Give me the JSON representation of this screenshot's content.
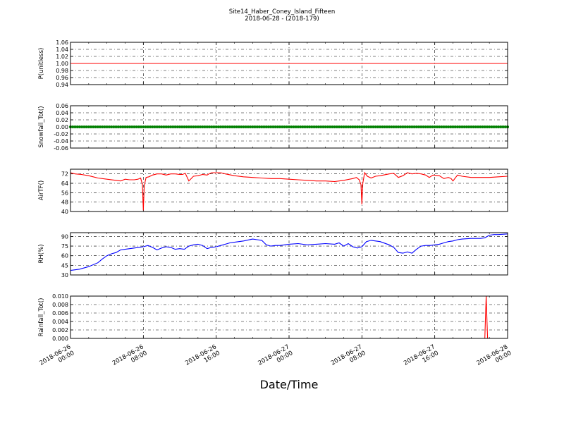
{
  "title": {
    "line1": "Site14_Haber_Coney_Island_Fifteen",
    "line2": "2018-06-28 - (2018-179)"
  },
  "xlabel": "Date/Time",
  "x_ticks": [
    {
      "line1": "2018-06-26",
      "line2": "00:00"
    },
    {
      "line1": "2018-06-26",
      "line2": "08:00"
    },
    {
      "line1": "2018-06-26",
      "line2": "16:00"
    },
    {
      "line1": "2018-06-27",
      "line2": "00:00"
    },
    {
      "line1": "2018-06-27",
      "line2": "08:00"
    },
    {
      "line1": "2018-06-27",
      "line2": "16:00"
    },
    {
      "line1": "2018-06-28",
      "line2": "00:00"
    }
  ],
  "chart_data": [
    {
      "type": "line",
      "ylabel": "P(unitless)",
      "color": "#ff0000",
      "ylim": [
        0.94,
        1.06
      ],
      "y_ticks": [
        "0.94",
        "0.96",
        "0.98",
        "1.00",
        "1.02",
        "1.04",
        "1.06"
      ],
      "x_hours": [
        0,
        48
      ],
      "values": [
        1.0,
        1.0
      ],
      "grid": true
    },
    {
      "type": "line",
      "ylabel": "Snowfall_Tot()",
      "color": "#008000",
      "marker": "dots",
      "ylim": [
        -0.06,
        0.06
      ],
      "y_ticks": [
        "-0.06",
        "-0.04",
        "-0.02",
        "0.00",
        "0.02",
        "0.04",
        "0.06"
      ],
      "x_hours": [
        0,
        48
      ],
      "values": [
        0.0,
        0.0
      ],
      "grid": true
    },
    {
      "type": "line",
      "ylabel": "AirTF()",
      "color": "#ff0000",
      "ylim": [
        40,
        76
      ],
      "y_ticks": [
        "40",
        "48",
        "56",
        "64",
        "72"
      ],
      "x_hours": [
        0,
        0.5,
        1.2,
        2,
        3,
        4,
        5,
        5.5,
        6,
        6.5,
        7,
        7.4,
        7.7,
        7.9,
        8,
        8.1,
        8.3,
        8.6,
        9,
        9.5,
        10,
        10.5,
        11,
        11.5,
        12,
        12.3,
        12.6,
        13,
        13.5,
        14,
        14.5,
        15,
        15.2,
        15.5,
        16,
        16.5,
        17,
        18,
        19,
        20,
        21,
        22,
        23,
        24,
        25,
        26,
        27,
        28,
        29,
        29.5,
        30,
        31,
        31.4,
        31.7,
        31.9,
        32,
        32.1,
        32.3,
        32.6,
        33,
        33.5,
        34,
        35,
        35.5,
        36,
        36.5,
        37,
        37.5,
        38,
        38.5,
        39,
        39.4,
        39.8,
        40.5,
        41,
        41.5,
        41.8,
        42,
        42.5,
        43,
        44,
        45,
        46,
        47,
        48
      ],
      "values": [
        73,
        72,
        71.5,
        70.5,
        68.5,
        67.5,
        66.5,
        66,
        67.5,
        67,
        67,
        67.5,
        68.5,
        63,
        41,
        62,
        69,
        69.5,
        71,
        72,
        72,
        71,
        72,
        72,
        71.5,
        71.5,
        72.5,
        66,
        70,
        70.5,
        71.5,
        71,
        72,
        73,
        73,
        73,
        72,
        70.5,
        69.5,
        69,
        68.5,
        68,
        68,
        67.5,
        67,
        66.5,
        66,
        66,
        65.5,
        66,
        66.5,
        68,
        69,
        67,
        63,
        46,
        64,
        73,
        70,
        68.5,
        70,
        70.5,
        72,
        72.5,
        69,
        70.5,
        73,
        72,
        72.5,
        72,
        71,
        69,
        71,
        70.5,
        68,
        69,
        68,
        66,
        71,
        70,
        69,
        69,
        69,
        69.5,
        70
      ]
    },
    {
      "type": "line",
      "ylabel": "RH(%)",
      "color": "#0000ff",
      "ylim": [
        30,
        96
      ],
      "y_ticks": [
        "30",
        "45",
        "60",
        "75",
        "90"
      ],
      "x_hours": [
        0,
        0.5,
        1,
        2,
        3,
        3.5,
        4,
        4.5,
        5,
        5.5,
        6,
        6.5,
        7,
        7.5,
        8,
        8.5,
        9,
        9.5,
        10,
        10.5,
        11,
        11.5,
        12,
        12.5,
        13,
        13.5,
        14,
        14.5,
        15,
        15.5,
        16,
        16.5,
        17,
        17.5,
        18,
        19,
        20,
        20.5,
        21,
        21.5,
        22,
        22.5,
        23,
        24,
        25,
        26,
        27,
        28,
        29,
        29.5,
        30,
        30.5,
        31,
        31.5,
        32,
        32.5,
        33,
        33.5,
        34,
        35,
        35.5,
        36,
        36.5,
        37,
        37.5,
        38,
        38.5,
        39,
        39.5,
        40,
        40.5,
        41,
        41.5,
        42,
        42.5,
        43,
        44,
        45,
        45.5,
        46,
        46.5,
        47,
        48
      ],
      "values": [
        37,
        38,
        39,
        43,
        49,
        55,
        60,
        63,
        65,
        69,
        70,
        71,
        72,
        73,
        74,
        76,
        73,
        69,
        72,
        74,
        73,
        70,
        71,
        70,
        75,
        77,
        78,
        76,
        71,
        73,
        74,
        76,
        78,
        80,
        81,
        83,
        86,
        85,
        84,
        77,
        75,
        76,
        76,
        78,
        79,
        77,
        78,
        79,
        78,
        80,
        75,
        79,
        74,
        72,
        74,
        82,
        84,
        83,
        82,
        77,
        73,
        65,
        64,
        66,
        64,
        70,
        75,
        76,
        76,
        77,
        78,
        80,
        82,
        83,
        85,
        86,
        87,
        87,
        88,
        92,
        93,
        93,
        94
      ]
    },
    {
      "type": "line",
      "ylabel": "Rainfall_Tot()",
      "color": "#ff0000",
      "ylim": [
        0,
        0.01
      ],
      "y_ticks": [
        "0.000",
        "0.002",
        "0.004",
        "0.006",
        "0.008",
        "0.010"
      ],
      "x_hours": [
        0,
        45.5,
        45.65,
        45.8,
        48
      ],
      "values": [
        0,
        0,
        0.01,
        0,
        0
      ],
      "grid": true
    }
  ]
}
